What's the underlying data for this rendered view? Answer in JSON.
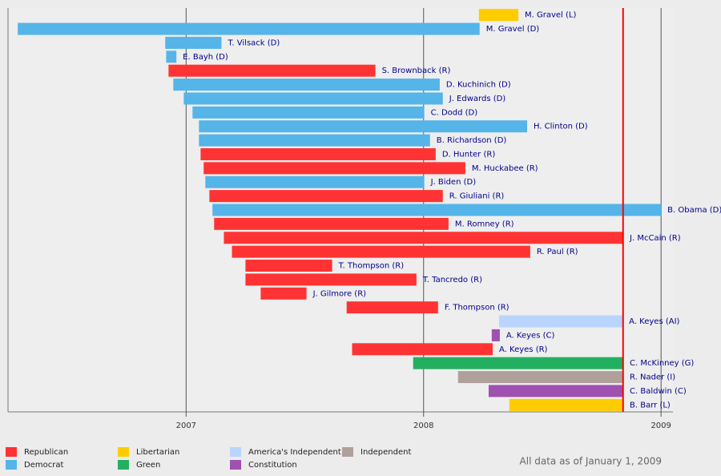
{
  "chart_data": {
    "type": "timeline",
    "footnote": "All data as of January 1, 2009",
    "xlim": [
      2006.25,
      2009.05
    ],
    "xticks": [
      2007,
      2008,
      2009
    ],
    "grid": true,
    "marker_line": {
      "value": 2008.84,
      "color": "#ff0000"
    },
    "series": [
      {
        "name": "Republican",
        "color": "#ff3333"
      },
      {
        "name": "Democrat",
        "color": "#55b4e8"
      },
      {
        "name": "Libertarian",
        "color": "#ffcc00"
      },
      {
        "name": "Green",
        "color": "#22b060"
      },
      {
        "name": "America's Independent",
        "color": "#b8d4ff"
      },
      {
        "name": "Constitution",
        "color": "#a050b0"
      },
      {
        "name": "Independent",
        "color": "#b0a09a"
      }
    ],
    "bars": [
      {
        "label": "M. Gravel (L)",
        "party": "Libertarian",
        "start": 2008.233,
        "end": 2008.399
      },
      {
        "label": "M. Gravel (D)",
        "party": "Democrat",
        "start": 2006.291,
        "end": 2008.236
      },
      {
        "label": "T. Vilsack (D)",
        "party": "Democrat",
        "start": 2006.912,
        "end": 2007.149
      },
      {
        "label": "E. Bayh (D)",
        "party": "Democrat",
        "start": 2006.916,
        "end": 2006.959
      },
      {
        "label": "S. Brownback (R)",
        "party": "Republican",
        "start": 2006.926,
        "end": 2007.797
      },
      {
        "label": "D. Kuchinich (D)",
        "party": "Democrat",
        "start": 2006.946,
        "end": 2008.068
      },
      {
        "label": "J. Edwards (D)",
        "party": "Democrat",
        "start": 2006.99,
        "end": 2008.081
      },
      {
        "label": "C. Dodd (D)",
        "party": "Democrat",
        "start": 2007.027,
        "end": 2008.003
      },
      {
        "label": "H. Clinton (D)",
        "party": "Democrat",
        "start": 2007.054,
        "end": 2008.436
      },
      {
        "label": "B. Richardson (D)",
        "party": "Democrat",
        "start": 2007.054,
        "end": 2008.027
      },
      {
        "label": "D. Hunter (R)",
        "party": "Republican",
        "start": 2007.061,
        "end": 2008.051
      },
      {
        "label": "M. Huckabee (R)",
        "party": "Republican",
        "start": 2007.074,
        "end": 2008.176
      },
      {
        "label": "J. Biden (D)",
        "party": "Democrat",
        "start": 2007.081,
        "end": 2008.003
      },
      {
        "label": "R. Giuliani (R)",
        "party": "Republican",
        "start": 2007.098,
        "end": 2008.081
      },
      {
        "label": "B. Obama (D)",
        "party": "Democrat",
        "start": 2007.111,
        "end": 2009.0
      },
      {
        "label": "M. Romney (R)",
        "party": "Republican",
        "start": 2007.118,
        "end": 2008.105
      },
      {
        "label": "J. McCain (R)",
        "party": "Republican",
        "start": 2007.159,
        "end": 2008.841
      },
      {
        "label": "R. Paul (R)",
        "party": "Republican",
        "start": 2007.193,
        "end": 2008.449
      },
      {
        "label": "T. Thompson (R)",
        "party": "Republican",
        "start": 2007.25,
        "end": 2007.615
      },
      {
        "label": "T. Tancredo (R)",
        "party": "Republican",
        "start": 2007.25,
        "end": 2007.97
      },
      {
        "label": "J. Gilmore (R)",
        "party": "Republican",
        "start": 2007.314,
        "end": 2007.507
      },
      {
        "label": "F. Thompson (R)",
        "party": "Republican",
        "start": 2007.676,
        "end": 2008.061
      },
      {
        "label": "A. Keyes (AI)",
        "party": "America's Independent",
        "start": 2008.318,
        "end": 2008.838
      },
      {
        "label": "A. Keyes (C)",
        "party": "Constitution",
        "start": 2008.287,
        "end": 2008.321
      },
      {
        "label": "A. Keyes (R)",
        "party": "Republican",
        "start": 2007.699,
        "end": 2008.291
      },
      {
        "label": "C. McKinney (G)",
        "party": "Green",
        "start": 2007.956,
        "end": 2008.841
      },
      {
        "label": "R. Nader (I)",
        "party": "Independent",
        "start": 2008.145,
        "end": 2008.841
      },
      {
        "label": "C. Baldwin (C)",
        "party": "Constitution",
        "start": 2008.274,
        "end": 2008.841
      },
      {
        "label": "B. Barr (L)",
        "party": "Libertarian",
        "start": 2008.361,
        "end": 2008.841
      }
    ]
  }
}
